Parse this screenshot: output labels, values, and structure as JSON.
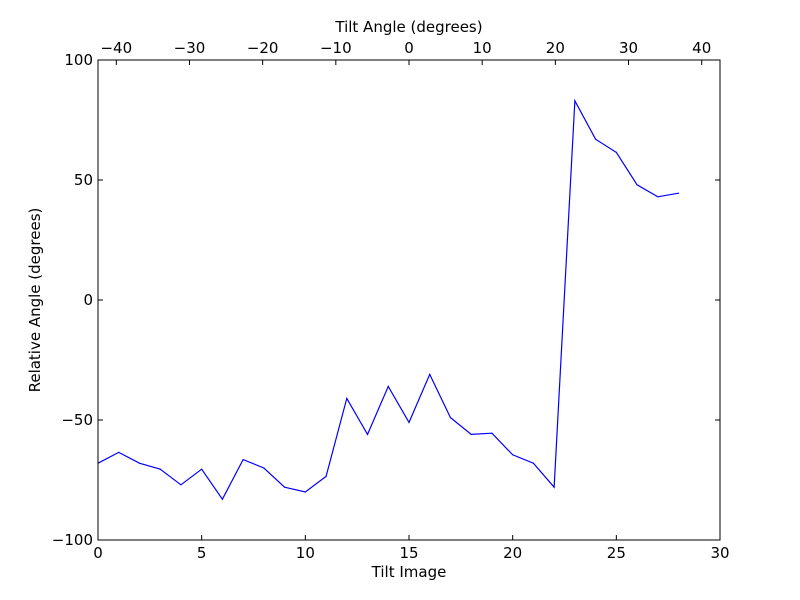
{
  "chart_data": {
    "type": "line",
    "xlabel": "Tilt Image",
    "ylabel": "Relative Angle (degrees)",
    "top_xlabel": "Tilt Angle (degrees)",
    "xlim": [
      0,
      30
    ],
    "ylim": [
      -100,
      100
    ],
    "top_xlim": [
      -42.5,
      42.5
    ],
    "x_ticks": [
      0,
      5,
      10,
      15,
      20,
      25,
      30
    ],
    "y_ticks": [
      -100,
      -50,
      0,
      50,
      100
    ],
    "top_ticks": [
      -40,
      -30,
      -20,
      -10,
      0,
      10,
      20,
      30,
      40
    ],
    "grid": false,
    "line_color": "#0000ff",
    "series": [
      {
        "x": [
          0,
          1,
          2,
          3,
          4,
          5,
          6,
          7,
          8,
          9,
          10,
          11,
          12,
          13,
          14,
          15,
          16,
          17,
          18,
          19,
          20,
          21,
          22,
          23,
          24,
          25,
          26,
          27,
          28
        ],
        "values": [
          -68,
          -63.5,
          -68,
          -70.5,
          -77,
          -70.5,
          -83,
          -66.5,
          -70,
          -78,
          -80,
          -73.5,
          -41,
          -56,
          -36,
          -51,
          -31,
          -49,
          -56,
          -55.5,
          -64.5,
          -68,
          -78,
          83,
          67,
          61.5,
          48,
          43,
          44.5
        ]
      }
    ]
  }
}
